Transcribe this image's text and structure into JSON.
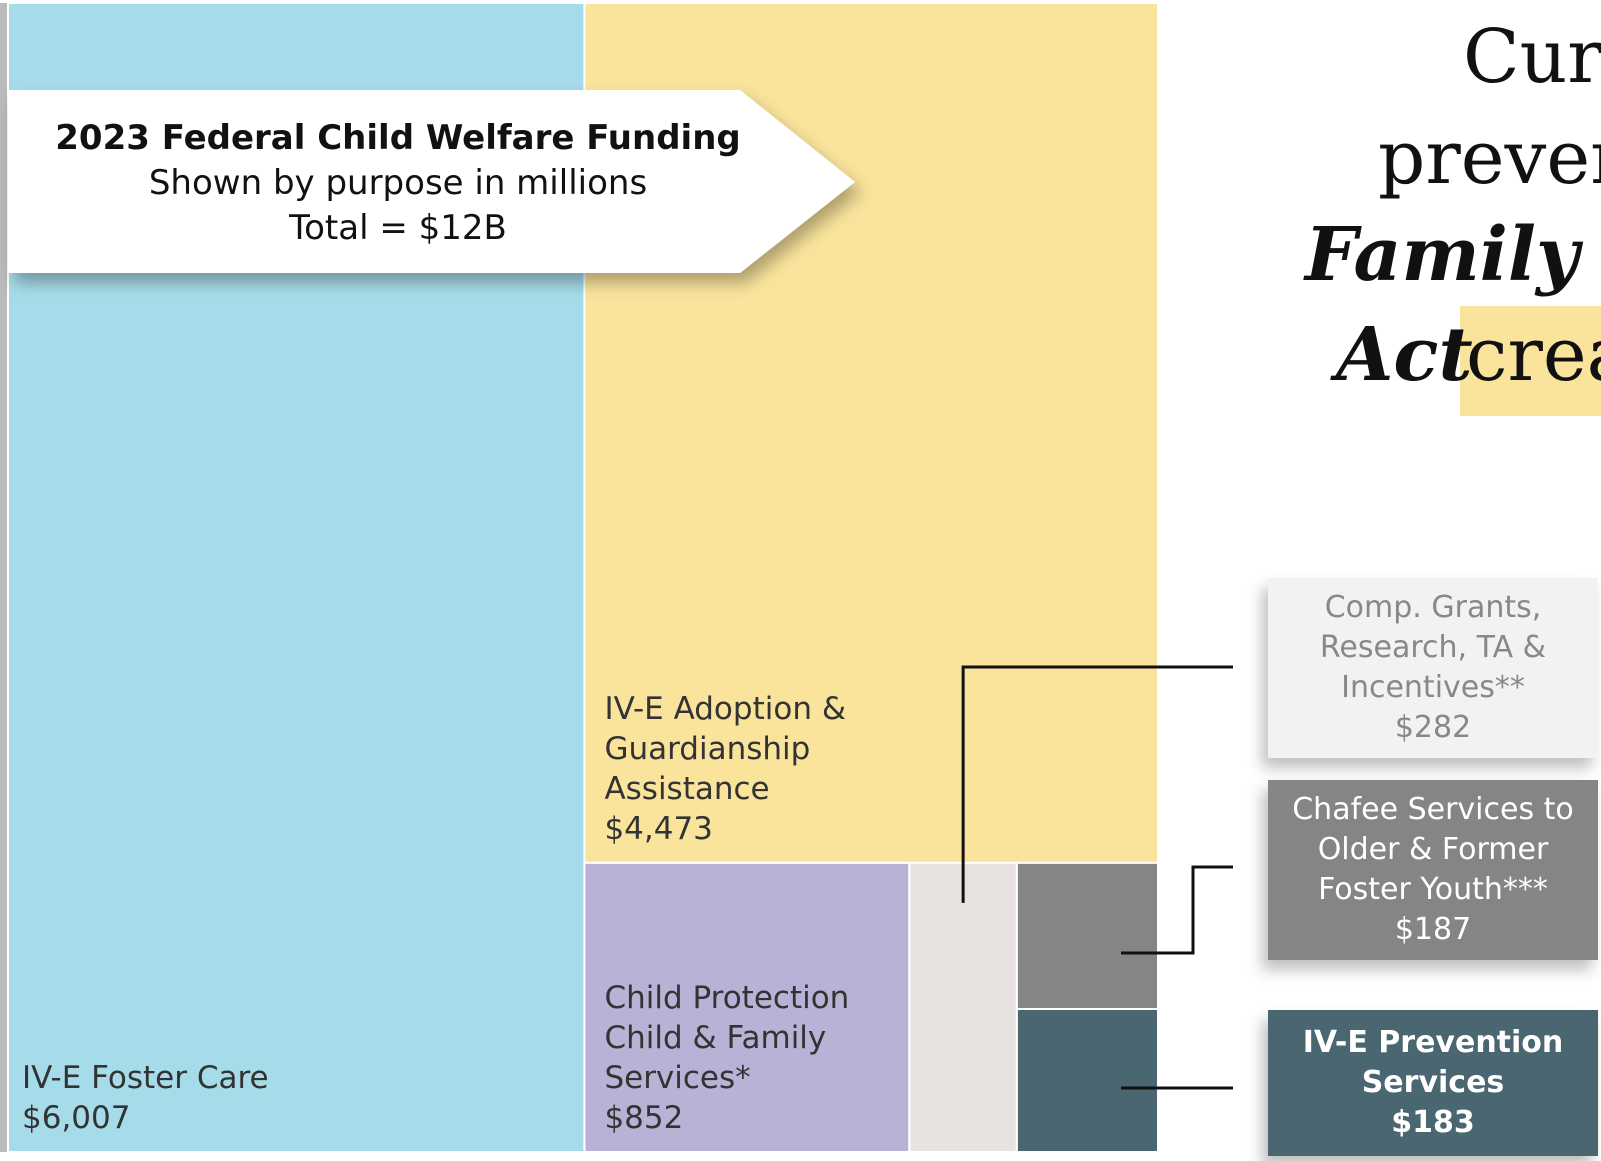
{
  "chart_data": {
    "type": "treemap",
    "title": "2023 Federal Child Welfare Funding",
    "subtitle": "Shown by purpose in millions",
    "annotation": "Total = $12B",
    "heading": [
      "Curr",
      "preven",
      "Family F",
      "Act",
      "crea"
    ],
    "categories": [
      "IV-E Foster Care",
      "IV-E Adoption & Guardianship Assistance",
      "Child Protection Child & Family Services*",
      "Comp. Grants, Research, TA & Incentives**",
      "Chafee Services to Older & Former Foster Youth***",
      "IV-E Prevention Services"
    ],
    "values": [
      6007,
      4473,
      852,
      282,
      187,
      183
    ],
    "value_labels": [
      "$6,007",
      "$4,473",
      "$852",
      "$282",
      "$187",
      "$183"
    ],
    "colors": [
      "#a6dcea",
      "#fae49c",
      "#bab2d6",
      "#e8e3e1",
      "#858585",
      "#4a6670"
    ]
  }
}
